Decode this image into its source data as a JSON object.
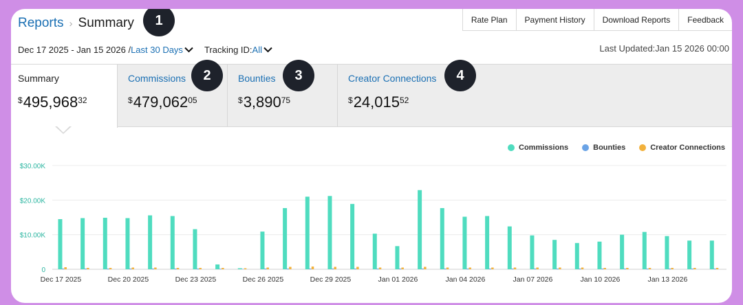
{
  "breadcrumb": {
    "root": "Reports",
    "separator": "›",
    "current": "Summary"
  },
  "badges": [
    "1",
    "2",
    "3",
    "4"
  ],
  "topnav": [
    "Rate Plan",
    "Payment History",
    "Download Reports",
    "Feedback"
  ],
  "filters": {
    "date_range": "Dec 17 2025 - Jan 15 2026 /",
    "range_link": "Last 30 Days",
    "tracking_label": "Tracking ID:",
    "tracking_value": "All"
  },
  "last_updated": "Last Updated:Jan 15 2026 00:00",
  "tabs": [
    {
      "label": "Summary",
      "currency": "$",
      "amount": "495,968",
      "cents": "32",
      "active": true
    },
    {
      "label": "Commissions",
      "currency": "$",
      "amount": "479,062",
      "cents": "05",
      "active": false
    },
    {
      "label": "Bounties",
      "currency": "$",
      "amount": "3,890",
      "cents": "75",
      "active": false
    },
    {
      "label": "Creator Connections",
      "currency": "$",
      "amount": "24,015",
      "cents": "52",
      "active": false
    }
  ],
  "colors": {
    "commissions": "#4fdcbf",
    "bounties": "#6aa3e6",
    "creator_connections": "#f2b13c",
    "link": "#1a6fb3",
    "axis_label": "#2ab5a0"
  },
  "chart_data": {
    "type": "bar",
    "categories": [
      "Dec 17 2025",
      "Dec 18 2025",
      "Dec 19 2025",
      "Dec 20 2025",
      "Dec 21 2025",
      "Dec 22 2025",
      "Dec 23 2025",
      "Dec 24 2025",
      "Dec 25 2025",
      "Dec 26 2025",
      "Dec 27 2025",
      "Dec 28 2025",
      "Dec 29 2025",
      "Dec 30 2025",
      "Dec 31 2025",
      "Jan 01 2026",
      "Jan 02 2026",
      "Jan 03 2026",
      "Jan 04 2026",
      "Jan 05 2026",
      "Jan 06 2026",
      "Jan 07 2026",
      "Jan 08 2026",
      "Jan 09 2026",
      "Jan 10 2026",
      "Jan 11 2026",
      "Jan 12 2026",
      "Jan 13 2026",
      "Jan 14 2026",
      "Jan 15 2026"
    ],
    "tick_labels": [
      "Dec 17 2025",
      "Dec 20 2025",
      "Dec 23 2025",
      "Dec 26 2025",
      "Dec 29 2025",
      "Jan 01 2026",
      "Jan 04 2026",
      "Jan 07 2026",
      "Jan 10 2026",
      "Jan 13 2026"
    ],
    "tick_every": 3,
    "series": [
      {
        "name": "Commissions",
        "values": [
          14500,
          14800,
          14900,
          14800,
          15600,
          15400,
          11600,
          1400,
          300,
          10900,
          17700,
          21000,
          21200,
          18900,
          10300,
          6700,
          22900,
          17700,
          15200,
          15400,
          12400,
          9800,
          8500,
          7600,
          8000,
          10000,
          10800,
          9600,
          8300,
          8300
        ]
      },
      {
        "name": "Bounties",
        "values": [
          200,
          200,
          200,
          200,
          200,
          200,
          200,
          150,
          100,
          200,
          200,
          200,
          200,
          200,
          200,
          200,
          200,
          200,
          200,
          200,
          200,
          200,
          200,
          200,
          200,
          200,
          200,
          200,
          200,
          200
        ]
      },
      {
        "name": "Creator Connections",
        "values": [
          600,
          400,
          400,
          500,
          500,
          400,
          400,
          400,
          300,
          500,
          700,
          800,
          700,
          700,
          500,
          500,
          700,
          500,
          500,
          500,
          500,
          500,
          500,
          500,
          400,
          400,
          400,
          400,
          400,
          400
        ]
      }
    ],
    "yticks": [
      0,
      10000,
      20000,
      30000
    ],
    "ytick_labels": [
      "0",
      "$10.00K",
      "$20.00K",
      "$30.00K"
    ],
    "ylim": [
      0,
      30000
    ],
    "grid": true,
    "legend_position": "top-right"
  }
}
